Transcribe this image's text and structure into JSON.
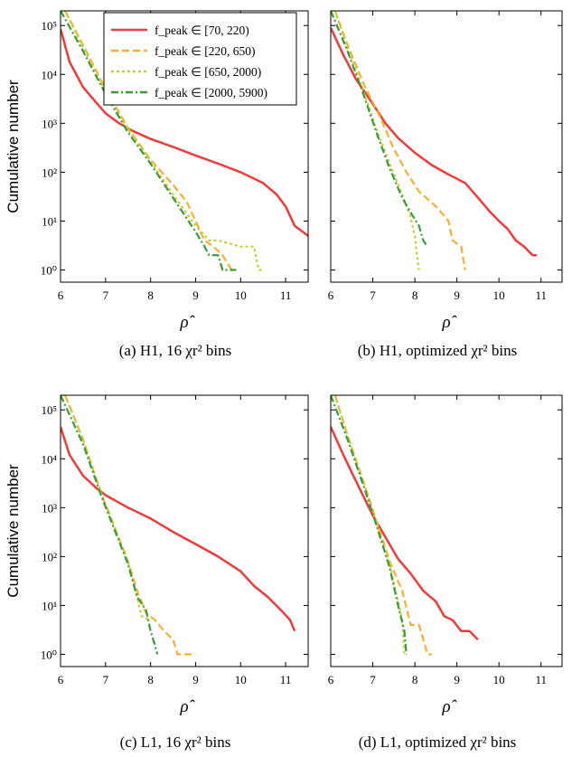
{
  "figure": {
    "ylabel": "Cumulative number",
    "xlabel": "ρ̂",
    "legend": [
      {
        "label": "f_peak ∈ [70, 220)",
        "color": "#ee3b3b",
        "dash": "solid"
      },
      {
        "label": "f_peak ∈ [220, 650)",
        "color": "#f5b031",
        "dash": "dashed"
      },
      {
        "label": "f_peak ∈ [650, 2000)",
        "color": "#c6cf38",
        "dash": "dotted"
      },
      {
        "label": "f_peak ∈ [2000, 5900)",
        "color": "#3a9a3a",
        "dash": "dashdot"
      }
    ]
  },
  "chart_data": [
    {
      "type": "line",
      "caption": "(a) H1, 16 χr² bins",
      "xlim": [
        6,
        11.5
      ],
      "ylim_log10": [
        -0.25,
        5.3
      ],
      "yscale": "log",
      "xticks": [
        6,
        7,
        8,
        9,
        10,
        11
      ],
      "yticks": [
        "10⁰",
        "10¹",
        "10²",
        "10³",
        "10⁴",
        "10⁵"
      ],
      "series": [
        {
          "name": "f_peak ∈ [70, 220)",
          "x": [
            6.0,
            6.2,
            6.5,
            6.8,
            7.0,
            7.3,
            7.6,
            8.0,
            8.5,
            9.0,
            9.5,
            10.0,
            10.5,
            10.8,
            11.0,
            11.2,
            11.5
          ],
          "y": [
            85000,
            18000,
            5500,
            2600,
            1600,
            1000,
            700,
            480,
            330,
            220,
            150,
            100,
            60,
            35,
            20,
            8,
            5
          ]
        },
        {
          "name": "f_peak ∈ [220, 650)",
          "x": [
            6.1,
            6.5,
            7.0,
            7.5,
            8.0,
            8.5,
            8.8,
            9.0,
            9.2,
            9.4,
            9.6,
            9.8,
            9.9
          ],
          "y": [
            200000,
            40000,
            5000,
            800,
            180,
            55,
            25,
            10,
            4,
            3,
            2,
            1,
            1
          ]
        },
        {
          "name": "f_peak ∈ [650, 2000)",
          "x": [
            6.1,
            6.5,
            7.0,
            7.5,
            8.0,
            8.5,
            9.0,
            9.3,
            9.5,
            10.0,
            10.3,
            10.4,
            10.5
          ],
          "y": [
            200000,
            35000,
            4500,
            750,
            170,
            35,
            8,
            4,
            4,
            3,
            3,
            1,
            1
          ]
        },
        {
          "name": "f_peak ∈ [2000, 5900)",
          "x": [
            6.0,
            6.5,
            7.0,
            7.5,
            8.0,
            8.5,
            9.0,
            9.2,
            9.3,
            9.5,
            9.6,
            9.8,
            9.9
          ],
          "y": [
            200000,
            30000,
            4000,
            650,
            150,
            30,
            6,
            3,
            2,
            2,
            1,
            1,
            1
          ]
        }
      ]
    },
    {
      "type": "line",
      "caption": "(b) H1, optimized χr² bins",
      "xlim": [
        6,
        11.5
      ],
      "ylim_log10": [
        -0.25,
        5.3
      ],
      "yscale": "log",
      "xticks": [
        6,
        7,
        8,
        9,
        10,
        11
      ],
      "yticks": [],
      "series": [
        {
          "name": "f_peak ∈ [70, 220)",
          "x": [
            6.0,
            6.3,
            6.6,
            7.0,
            7.3,
            7.6,
            8.0,
            8.4,
            8.8,
            9.2,
            9.5,
            9.8,
            10.0,
            10.2,
            10.4,
            10.6,
            10.8,
            10.9
          ],
          "y": [
            90000,
            25000,
            8000,
            2500,
            1000,
            500,
            250,
            140,
            90,
            60,
            30,
            15,
            10,
            7,
            4,
            3,
            2,
            2
          ]
        },
        {
          "name": "f_peak ∈ [220, 650)",
          "x": [
            6.1,
            6.4,
            6.8,
            7.2,
            7.5,
            7.8,
            8.1,
            8.5,
            8.8,
            8.9,
            9.1,
            9.2
          ],
          "y": [
            200000,
            40000,
            6000,
            1200,
            300,
            100,
            40,
            20,
            10,
            4,
            3,
            1
          ]
        },
        {
          "name": "f_peak ∈ [650, 2000)",
          "x": [
            6.1,
            6.4,
            6.8,
            7.1,
            7.4,
            7.7,
            7.9,
            8.0,
            8.05,
            8.1
          ],
          "y": [
            200000,
            35000,
            4000,
            700,
            150,
            35,
            12,
            5,
            2,
            1
          ]
        },
        {
          "name": "f_peak ∈ [2000, 5900)",
          "x": [
            6.0,
            6.4,
            6.8,
            7.1,
            7.4,
            7.7,
            7.9,
            8.1,
            8.2,
            8.3
          ],
          "y": [
            200000,
            30000,
            3500,
            600,
            120,
            30,
            15,
            8,
            4,
            3
          ]
        }
      ]
    },
    {
      "type": "line",
      "caption": "(c) L1, 16 χr² bins",
      "xlim": [
        6,
        11.5
      ],
      "ylim_log10": [
        -0.25,
        5.3
      ],
      "yscale": "log",
      "xticks": [
        6,
        7,
        8,
        9,
        10,
        11
      ],
      "yticks": [
        "10⁰",
        "10¹",
        "10²",
        "10³",
        "10⁴",
        "10⁵"
      ],
      "series": [
        {
          "name": "f_peak ∈ [70, 220)",
          "x": [
            6.0,
            6.2,
            6.5,
            6.8,
            7.0,
            7.5,
            8.0,
            8.5,
            9.0,
            9.5,
            10.0,
            10.3,
            10.6,
            10.9,
            11.1,
            11.2
          ],
          "y": [
            45000,
            12000,
            4500,
            2500,
            1800,
            1000,
            600,
            320,
            180,
            100,
            50,
            25,
            15,
            8,
            5,
            3
          ]
        },
        {
          "name": "f_peak ∈ [220, 650)",
          "x": [
            6.1,
            6.5,
            6.9,
            7.2,
            7.5,
            7.7,
            7.9,
            8.1,
            8.3,
            8.5,
            8.6,
            8.8,
            9.0
          ],
          "y": [
            200000,
            25000,
            2000,
            400,
            80,
            20,
            7,
            5,
            3,
            2,
            1,
            1,
            1
          ]
        },
        {
          "name": "f_peak ∈ [650, 2000)",
          "x": [
            6.1,
            6.5,
            6.9,
            7.2,
            7.5,
            7.7,
            7.8,
            8.0
          ],
          "y": [
            200000,
            25000,
            2000,
            400,
            80,
            15,
            6,
            5
          ]
        },
        {
          "name": "f_peak ∈ [2000, 5900)",
          "x": [
            6.0,
            6.5,
            6.9,
            7.2,
            7.5,
            7.7,
            7.9,
            8.0,
            8.1,
            8.15
          ],
          "y": [
            200000,
            20000,
            1800,
            350,
            70,
            15,
            8,
            3,
            1.5,
            1
          ]
        }
      ]
    },
    {
      "type": "line",
      "caption": "(d) L1, optimized χr² bins",
      "xlim": [
        6,
        11.5
      ],
      "ylim_log10": [
        -0.25,
        5.3
      ],
      "yscale": "log",
      "xticks": [
        6,
        7,
        8,
        9,
        10,
        11
      ],
      "yticks": [],
      "series": [
        {
          "name": "f_peak ∈ [70, 220)",
          "x": [
            6.0,
            6.3,
            6.6,
            7.0,
            7.3,
            7.6,
            7.9,
            8.2,
            8.5,
            8.7,
            8.9,
            9.1,
            9.3,
            9.5
          ],
          "y": [
            45000,
            12000,
            3500,
            700,
            250,
            90,
            45,
            20,
            12,
            6,
            5,
            3,
            3,
            2
          ]
        },
        {
          "name": "f_peak ∈ [220, 650)",
          "x": [
            6.1,
            6.4,
            6.8,
            7.1,
            7.4,
            7.7,
            7.9,
            8.1,
            8.2,
            8.3,
            8.4
          ],
          "y": [
            200000,
            30000,
            3000,
            500,
            80,
            20,
            4,
            4,
            2,
            1,
            1
          ]
        },
        {
          "name": "f_peak ∈ [650, 2000)",
          "x": [
            6.1,
            6.4,
            6.8,
            7.1,
            7.4,
            7.6,
            7.7,
            7.75
          ],
          "y": [
            200000,
            30000,
            3000,
            450,
            70,
            12,
            5,
            1
          ]
        },
        {
          "name": "f_peak ∈ [2000, 5900)",
          "x": [
            6.0,
            6.4,
            6.8,
            7.1,
            7.4,
            7.6,
            7.75,
            7.8
          ],
          "y": [
            200000,
            25000,
            2500,
            400,
            60,
            10,
            3,
            1
          ]
        }
      ]
    }
  ]
}
